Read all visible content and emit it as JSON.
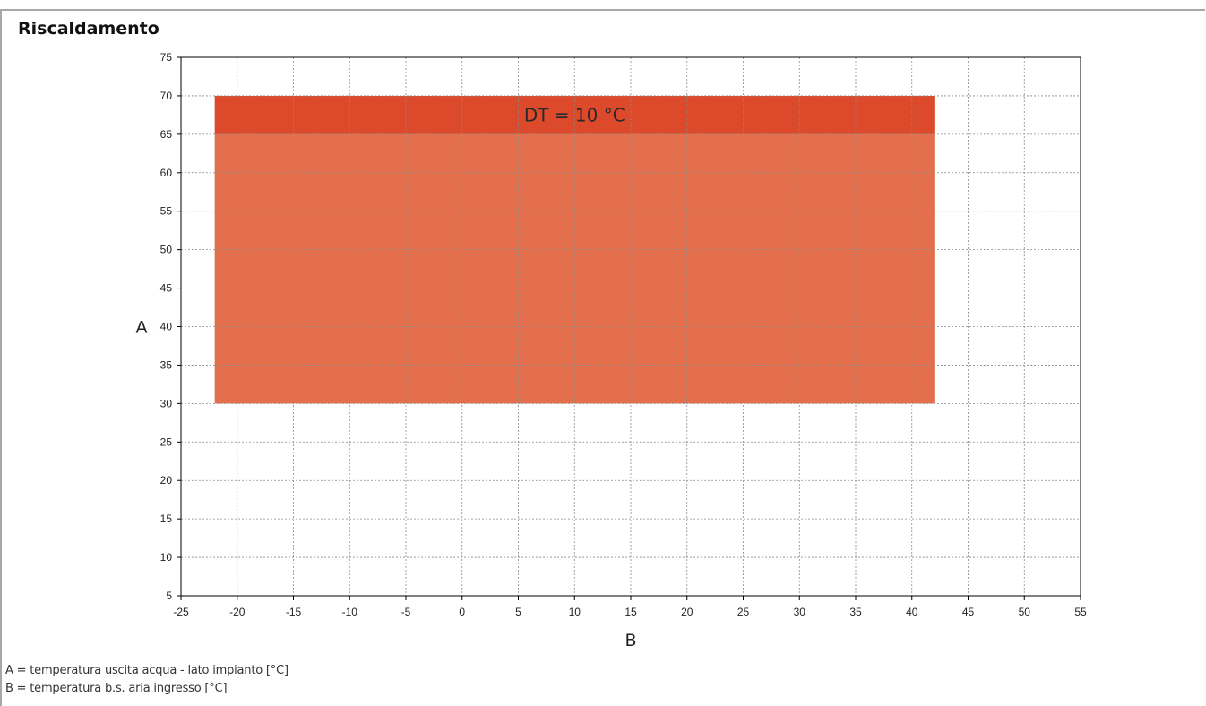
{
  "title": "Riscaldamento",
  "colors": {
    "band_upper": "#dd4a2b",
    "band_lower": "#e36f4c",
    "grid": "#8a8a8a"
  },
  "chart_data": {
    "type": "area",
    "title": "Riscaldamento",
    "xlabel": "B",
    "ylabel": "A",
    "xlim": [
      -25,
      55
    ],
    "ylim": [
      5,
      75
    ],
    "x_ticks": [
      -25,
      -20,
      -15,
      -10,
      -5,
      0,
      5,
      10,
      15,
      20,
      25,
      30,
      35,
      40,
      45,
      50,
      55
    ],
    "y_ticks": [
      5,
      10,
      15,
      20,
      25,
      30,
      35,
      40,
      45,
      50,
      55,
      60,
      65,
      70,
      75
    ],
    "grid": true,
    "regions": [
      {
        "x": [
          -22,
          42
        ],
        "y": [
          30,
          65
        ],
        "color": "#e36f4c"
      },
      {
        "x": [
          -22,
          42
        ],
        "y": [
          65,
          70
        ],
        "color": "#dd4a2b"
      }
    ],
    "annotations": [
      {
        "text": "DT  =  10 °C",
        "x": 10,
        "y": 67.5
      }
    ]
  },
  "legend": [
    "A = temperatura uscita acqua - lato impianto [°C]",
    "B = temperatura b.s. aria ingresso [°C]"
  ]
}
